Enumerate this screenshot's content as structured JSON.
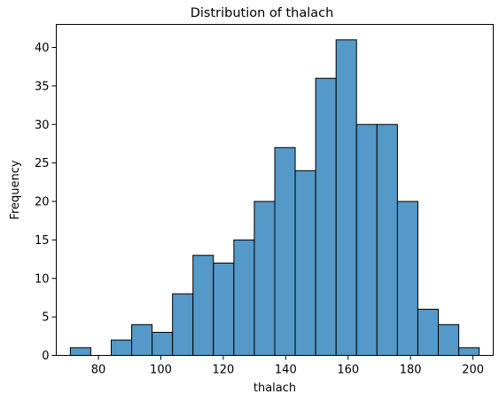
{
  "chart_data": {
    "type": "bar",
    "title": "Distribution of thalach",
    "xlabel": "thalach",
    "ylabel": "Frequency",
    "x_ticks": [
      80,
      100,
      120,
      140,
      160,
      180,
      200
    ],
    "y_ticks": [
      0,
      5,
      10,
      15,
      20,
      25,
      30,
      35,
      40
    ],
    "xlim": [
      66.5,
      206.5
    ],
    "ylim": [
      0,
      43
    ],
    "grid": false,
    "bar_color": "#5499C7",
    "edge_color": "#000000",
    "bins": [
      {
        "start": 71.0,
        "end": 77.55,
        "count": 1
      },
      {
        "start": 77.55,
        "end": 84.1,
        "count": 0
      },
      {
        "start": 84.1,
        "end": 90.65,
        "count": 2
      },
      {
        "start": 90.65,
        "end": 97.2,
        "count": 4
      },
      {
        "start": 97.2,
        "end": 103.75,
        "count": 3
      },
      {
        "start": 103.75,
        "end": 110.3,
        "count": 8
      },
      {
        "start": 110.3,
        "end": 116.85,
        "count": 13
      },
      {
        "start": 116.85,
        "end": 123.4,
        "count": 12
      },
      {
        "start": 123.4,
        "end": 129.95,
        "count": 15
      },
      {
        "start": 129.95,
        "end": 136.5,
        "count": 20
      },
      {
        "start": 136.5,
        "end": 143.05,
        "count": 27
      },
      {
        "start": 143.05,
        "end": 149.6,
        "count": 24
      },
      {
        "start": 149.6,
        "end": 156.15,
        "count": 36
      },
      {
        "start": 156.15,
        "end": 162.7,
        "count": 41
      },
      {
        "start": 162.7,
        "end": 169.25,
        "count": 30
      },
      {
        "start": 169.25,
        "end": 175.8,
        "count": 30
      },
      {
        "start": 175.8,
        "end": 182.35,
        "count": 20
      },
      {
        "start": 182.35,
        "end": 188.9,
        "count": 6
      },
      {
        "start": 188.9,
        "end": 195.45,
        "count": 4
      },
      {
        "start": 195.45,
        "end": 202.0,
        "count": 1
      }
    ]
  }
}
